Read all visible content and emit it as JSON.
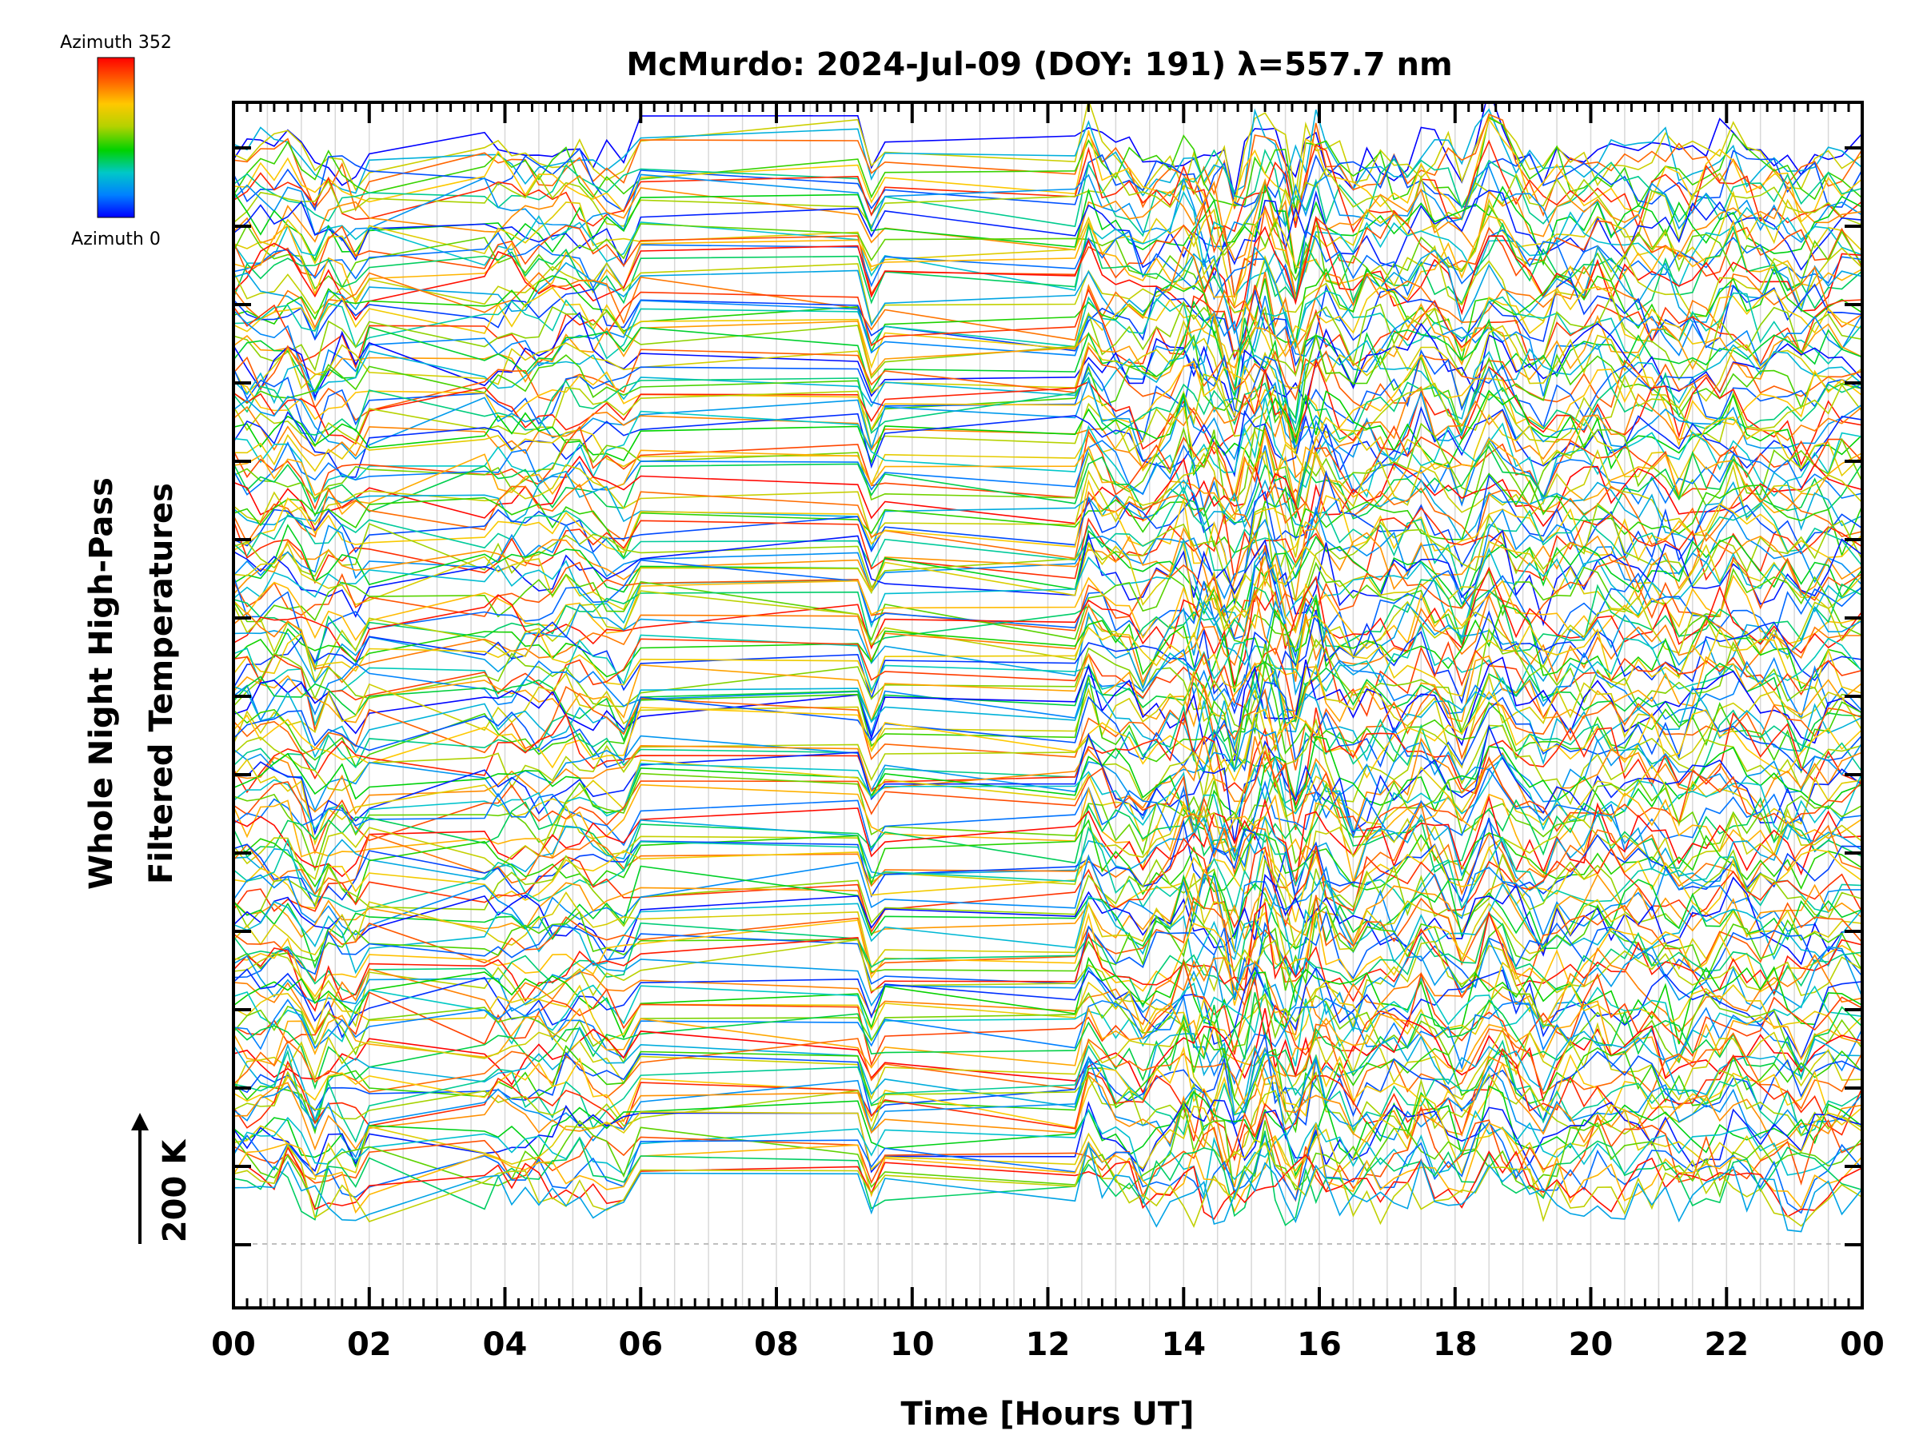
{
  "chart_data": {
    "type": "line",
    "title": "McMurdo: 2024-Jul-09 (DOY: 191) λ=557.7 nm",
    "xlabel": "Time [Hours UT]",
    "ylabel_line1": "Whole Night High-Pass",
    "ylabel_line2": "Filtered Temperatures",
    "xlim": [
      0,
      24
    ],
    "xticks": [
      "00",
      "02",
      "04",
      "06",
      "08",
      "10",
      "12",
      "14",
      "16",
      "18",
      "20",
      "22",
      "00"
    ],
    "scale_bar_label": "200 K",
    "colorbar": {
      "top_label": "Azimuth 352",
      "bottom_label": "Azimuth 0",
      "colors": [
        "#0000ff",
        "#0080ff",
        "#00c8c8",
        "#00d200",
        "#b4d200",
        "#ffc800",
        "#ff6400",
        "#ff0000"
      ]
    },
    "series_description": "Stacked high-pass filtered temperature traces, one per azimuth, colored by azimuth",
    "n_bands": 14,
    "traces_per_band": 12,
    "sample_times_hours": [
      0.0,
      0.2,
      0.4,
      0.6,
      0.8,
      1.0,
      1.2,
      1.4,
      1.6,
      1.8,
      2.0,
      3.7,
      3.9,
      4.1,
      4.3,
      4.5,
      4.7,
      4.9,
      5.1,
      5.3,
      5.5,
      5.75,
      6.0,
      9.2,
      9.4,
      9.6,
      12.4,
      12.6,
      12.8,
      13.0,
      13.2,
      13.4,
      13.6,
      13.8,
      14.0,
      14.15,
      14.3,
      14.45,
      14.6,
      14.75,
      14.9,
      15.05,
      15.2,
      15.35,
      15.5,
      15.65,
      15.8,
      15.95,
      16.1,
      16.3,
      16.5,
      16.7,
      16.9,
      17.1,
      17.3,
      17.5,
      17.7,
      17.9,
      18.1,
      18.3,
      18.5,
      18.7,
      18.9,
      19.1,
      19.3,
      19.5,
      19.7,
      19.9,
      20.1,
      20.3,
      20.5,
      20.7,
      20.9,
      21.1,
      21.3,
      21.5,
      21.7,
      21.9,
      22.1,
      22.3,
      22.5,
      22.7,
      22.9,
      23.1,
      23.3,
      23.5,
      23.7,
      24.0
    ]
  }
}
